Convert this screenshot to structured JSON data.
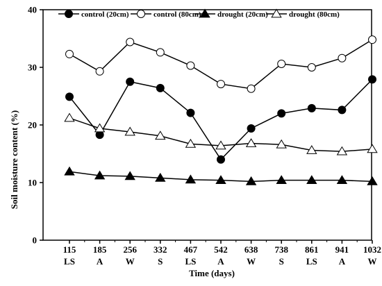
{
  "chart_data": {
    "type": "line",
    "xlabel": "Time (days)",
    "ylabel": "Soil moisture content (%)",
    "ylim": [
      0,
      40
    ],
    "yticks": [
      0,
      10,
      20,
      30,
      40
    ],
    "categories": [
      "115",
      "185",
      "256",
      "332",
      "467",
      "542",
      "638",
      "738",
      "861",
      "941",
      "1032"
    ],
    "seasons": [
      "LS",
      "A",
      "W",
      "S",
      "LS",
      "A",
      "W",
      "S",
      "LS",
      "A",
      "W"
    ],
    "legend_position": "top",
    "grid": false,
    "series": [
      {
        "name": "control (20cm)",
        "marker": "filled-circle",
        "values": [
          24.9,
          18.3,
          27.5,
          26.4,
          22.1,
          14.0,
          19.4,
          22.0,
          22.9,
          22.6,
          27.9
        ]
      },
      {
        "name": "control (80cm)",
        "marker": "open-circle",
        "values": [
          32.3,
          29.3,
          34.4,
          32.6,
          30.3,
          27.1,
          26.3,
          30.6,
          30.0,
          31.6,
          34.8
        ]
      },
      {
        "name": "drought (20cm)",
        "marker": "filled-triangle",
        "values": [
          11.9,
          11.2,
          11.1,
          10.8,
          10.5,
          10.4,
          10.2,
          10.4,
          10.4,
          10.4,
          10.2
        ]
      },
      {
        "name": "drought (80cm)",
        "marker": "open-triangle",
        "values": [
          21.2,
          19.4,
          18.8,
          18.1,
          16.7,
          16.4,
          16.8,
          16.6,
          15.6,
          15.4,
          15.8
        ]
      }
    ]
  }
}
